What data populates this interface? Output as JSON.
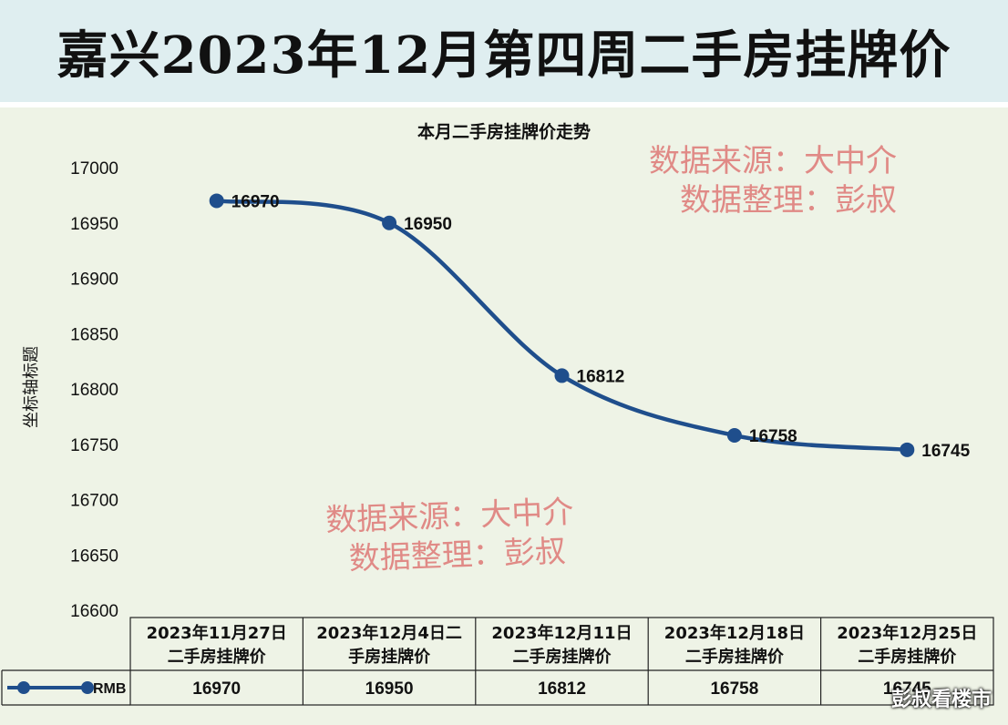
{
  "banner": {
    "title": "嘉兴2023年12月第四周二手房挂牌价"
  },
  "watermarks": {
    "source": "数据来源：大中介",
    "organizer": "数据整理：彭叔"
  },
  "credit": "彭叔看楼市",
  "chart_data": {
    "type": "line",
    "title": "本月二手房挂牌价走势",
    "ylabel": "坐标轴标题",
    "xlabel": "",
    "ylim": [
      16600,
      17000
    ],
    "yticks": [
      16600,
      16650,
      16700,
      16750,
      16800,
      16850,
      16900,
      16950,
      17000
    ],
    "grid": false,
    "categories": [
      "2023年11月27日二手房挂牌价",
      "2023年12月4日二手房挂牌价",
      "2023年12月11日二手房挂牌价",
      "2023年12月18日二手房挂牌价",
      "2023年12月25日二手房挂牌价"
    ],
    "category_lines": [
      [
        "2023年11月27日",
        "二手房挂牌价"
      ],
      [
        "2023年12月4日二",
        "手房挂牌价"
      ],
      [
        "2023年12月11日",
        "二手房挂牌价"
      ],
      [
        "2023年12月18日",
        "二手房挂牌价"
      ],
      [
        "2023年12月25日",
        "二手房挂牌价"
      ]
    ],
    "series": [
      {
        "name": "RMB",
        "values": [
          16970,
          16950,
          16812,
          16758,
          16745
        ],
        "color": "#1f4e8c"
      }
    ],
    "data_labels": [
      "16970",
      "16950",
      "16812",
      "16758",
      "16745"
    ],
    "legend_placement": "data-table"
  }
}
